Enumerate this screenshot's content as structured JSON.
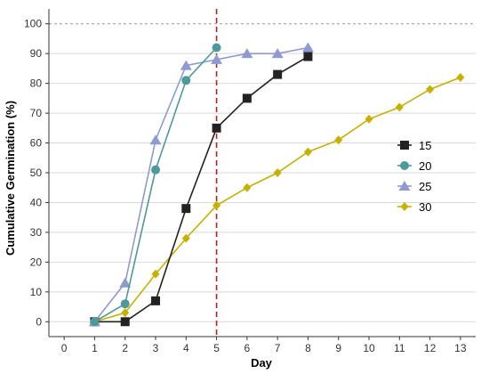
{
  "chart_data": {
    "type": "line",
    "xlabel": "Day",
    "ylabel": "Cumulative Germination (%)",
    "xlim": [
      0,
      13
    ],
    "ylim": [
      0,
      100
    ],
    "x_ticks": [
      "0",
      "1",
      "2",
      "3",
      "4",
      "5",
      "6",
      "7",
      "8",
      "9",
      "10",
      "11",
      "12",
      "13"
    ],
    "y_ticks": [
      "0",
      "10",
      "20",
      "30",
      "40",
      "50",
      "60",
      "70",
      "80",
      "90",
      "100"
    ],
    "grid": "horizontal",
    "legend_position": "right",
    "reference_lines": [
      {
        "axis": "y",
        "value": 100,
        "style": "dashed",
        "color": "#999999"
      },
      {
        "axis": "x",
        "value": 5,
        "style": "dashed",
        "color": "#b22222"
      }
    ],
    "series": [
      {
        "name": "15",
        "color": "#222222",
        "marker": "square",
        "x": [
          1,
          2,
          3,
          4,
          5,
          6,
          7,
          8
        ],
        "values": [
          0,
          0,
          7,
          38,
          65,
          75,
          83,
          89
        ]
      },
      {
        "name": "20",
        "color": "#4e9a99",
        "marker": "circle",
        "x": [
          1,
          2,
          3,
          4,
          5
        ],
        "values": [
          0,
          6,
          51,
          81,
          92
        ]
      },
      {
        "name": "25",
        "color": "#8e9ad0",
        "marker": "triangle",
        "x": [
          1,
          2,
          3,
          4,
          5,
          6,
          7,
          8
        ],
        "values": [
          0,
          13,
          61,
          86,
          88,
          90,
          90,
          92
        ]
      },
      {
        "name": "30",
        "color": "#c6b000",
        "marker": "diamond",
        "x": [
          1,
          2,
          3,
          4,
          5,
          6,
          7,
          8,
          9,
          10,
          11,
          12,
          13
        ],
        "values": [
          0,
          3,
          16,
          28,
          39,
          45,
          50,
          57,
          61,
          68,
          72,
          78,
          82
        ]
      }
    ]
  }
}
